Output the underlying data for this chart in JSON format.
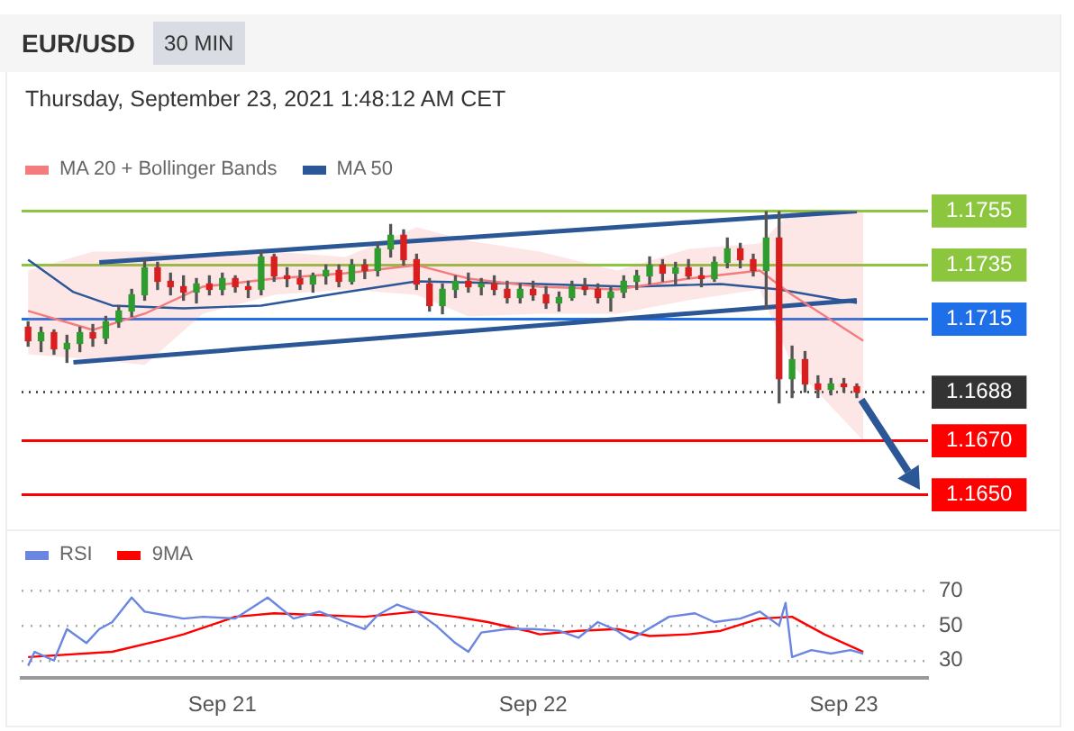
{
  "chart_data": [
    {
      "type": "candlestick",
      "title": "EUR/USD",
      "subtitle": "30 MIN",
      "annotations": [
        "Thursday, September 23, 2021 1:48:12 AM CET"
      ],
      "x": [
        "2021-09-20T09:00",
        "2021-09-20T10:00",
        "2021-09-20T11:00",
        "2021-09-20T12:00",
        "2021-09-20T13:00",
        "2021-09-20T14:00",
        "2021-09-20T15:00",
        "2021-09-20T16:00",
        "2021-09-20T17:00",
        "2021-09-20T18:00",
        "2021-09-20T19:00",
        "2021-09-20T20:00",
        "2021-09-20T21:00",
        "2021-09-20T22:00",
        "2021-09-20T23:00",
        "2021-09-21T00:00",
        "2021-09-21T01:00",
        "2021-09-21T02:00",
        "2021-09-21T03:00",
        "2021-09-21T04:00",
        "2021-09-21T05:00",
        "2021-09-21T06:00",
        "2021-09-21T07:00",
        "2021-09-21T08:00",
        "2021-09-21T09:00",
        "2021-09-21T10:00",
        "2021-09-21T11:00",
        "2021-09-21T12:00",
        "2021-09-21T13:00",
        "2021-09-21T14:00",
        "2021-09-21T15:00",
        "2021-09-21T16:00",
        "2021-09-21T17:00",
        "2021-09-21T18:00",
        "2021-09-21T19:00",
        "2021-09-21T20:00",
        "2021-09-21T21:00",
        "2021-09-21T22:00",
        "2021-09-21T23:00",
        "2021-09-22T00:00",
        "2021-09-22T01:00",
        "2021-09-22T02:00",
        "2021-09-22T03:00",
        "2021-09-22T04:00",
        "2021-09-22T05:00",
        "2021-09-22T06:00",
        "2021-09-22T07:00",
        "2021-09-22T08:00",
        "2021-09-22T09:00",
        "2021-09-22T10:00",
        "2021-09-22T11:00",
        "2021-09-22T12:00",
        "2021-09-22T13:00",
        "2021-09-22T14:00",
        "2021-09-22T15:00",
        "2021-09-22T16:00",
        "2021-09-22T17:00",
        "2021-09-22T18:00",
        "2021-09-22T19:00",
        "2021-09-22T20:00",
        "2021-09-22T21:00",
        "2021-09-22T22:00",
        "2021-09-22T23:00",
        "2021-09-23T00:00",
        "2021-09-23T01:00"
      ],
      "ohlc": [
        [
          1.1712,
          1.1714,
          1.1705,
          1.1707
        ],
        [
          1.1707,
          1.1712,
          1.1703,
          1.171
        ],
        [
          1.171,
          1.1711,
          1.1702,
          1.1704
        ],
        [
          1.1704,
          1.1709,
          1.1699,
          1.1706
        ],
        [
          1.1706,
          1.1712,
          1.1703,
          1.171
        ],
        [
          1.171,
          1.1713,
          1.1705,
          1.1708
        ],
        [
          1.1708,
          1.1716,
          1.1706,
          1.1714
        ],
        [
          1.1714,
          1.172,
          1.1712,
          1.1718
        ],
        [
          1.1718,
          1.1726,
          1.1716,
          1.1724
        ],
        [
          1.1724,
          1.1737,
          1.1722,
          1.1734
        ],
        [
          1.1734,
          1.1736,
          1.1726,
          1.1729
        ],
        [
          1.1729,
          1.1732,
          1.1724,
          1.1727
        ],
        [
          1.1727,
          1.1731,
          1.1722,
          1.1725
        ],
        [
          1.1725,
          1.173,
          1.1721,
          1.1728
        ],
        [
          1.1728,
          1.1731,
          1.1724,
          1.1726
        ],
        [
          1.1726,
          1.1732,
          1.1724,
          1.173
        ],
        [
          1.173,
          1.1731,
          1.1725,
          1.1727
        ],
        [
          1.1727,
          1.1729,
          1.1723,
          1.1726
        ],
        [
          1.1726,
          1.174,
          1.1724,
          1.1738
        ],
        [
          1.1738,
          1.1739,
          1.1729,
          1.1731
        ],
        [
          1.1731,
          1.1734,
          1.1727,
          1.173
        ],
        [
          1.173,
          1.1733,
          1.1726,
          1.1728
        ],
        [
          1.1728,
          1.1732,
          1.1725,
          1.1731
        ],
        [
          1.1731,
          1.1735,
          1.1728,
          1.1733
        ],
        [
          1.1733,
          1.1735,
          1.1727,
          1.1729
        ],
        [
          1.1729,
          1.1737,
          1.1728,
          1.1735
        ],
        [
          1.1735,
          1.1737,
          1.173,
          1.1733
        ],
        [
          1.1733,
          1.1743,
          1.1731,
          1.1741
        ],
        [
          1.1741,
          1.175,
          1.1738,
          1.1746
        ],
        [
          1.1746,
          1.1748,
          1.1735,
          1.1737
        ],
        [
          1.1737,
          1.1739,
          1.1726,
          1.1728
        ],
        [
          1.1728,
          1.173,
          1.1718,
          1.172
        ],
        [
          1.172,
          1.1728,
          1.1717,
          1.1726
        ],
        [
          1.1726,
          1.1731,
          1.1723,
          1.1729
        ],
        [
          1.1729,
          1.1732,
          1.1725,
          1.1727
        ],
        [
          1.1727,
          1.173,
          1.1724,
          1.1728
        ],
        [
          1.1728,
          1.1731,
          1.1724,
          1.1726
        ],
        [
          1.1726,
          1.1729,
          1.1721,
          1.1723
        ],
        [
          1.1723,
          1.1728,
          1.1721,
          1.1726
        ],
        [
          1.1726,
          1.1729,
          1.1722,
          1.1724
        ],
        [
          1.1724,
          1.1727,
          1.1719,
          1.1721
        ],
        [
          1.1721,
          1.1725,
          1.1718,
          1.1723
        ],
        [
          1.1723,
          1.1729,
          1.1722,
          1.1727
        ],
        [
          1.1727,
          1.173,
          1.1724,
          1.1726
        ],
        [
          1.1726,
          1.1728,
          1.1721,
          1.1723
        ],
        [
          1.1723,
          1.1727,
          1.1718,
          1.1725
        ],
        [
          1.1725,
          1.1731,
          1.1723,
          1.1729
        ],
        [
          1.1729,
          1.1733,
          1.1726,
          1.1731
        ],
        [
          1.1731,
          1.1738,
          1.1728,
          1.1735
        ],
        [
          1.1735,
          1.1737,
          1.1729,
          1.1732
        ],
        [
          1.1732,
          1.1736,
          1.1728,
          1.1734
        ],
        [
          1.1734,
          1.1737,
          1.173,
          1.1731
        ],
        [
          1.1731,
          1.1734,
          1.1727,
          1.173
        ],
        [
          1.173,
          1.1738,
          1.1729,
          1.1736
        ],
        [
          1.1736,
          1.1745,
          1.1734,
          1.1741
        ],
        [
          1.1741,
          1.1743,
          1.1734,
          1.1737
        ],
        [
          1.1737,
          1.1739,
          1.1731,
          1.1733
        ],
        [
          1.1733,
          1.1755,
          1.1719,
          1.1745
        ],
        [
          1.1745,
          1.1755,
          1.1684,
          1.1693
        ],
        [
          1.1693,
          1.1705,
          1.1686,
          1.17
        ],
        [
          1.17,
          1.1703,
          1.1688,
          1.1691
        ],
        [
          1.1691,
          1.1694,
          1.1686,
          1.1689
        ],
        [
          1.1689,
          1.1693,
          1.1687,
          1.1691
        ],
        [
          1.1691,
          1.1693,
          1.1688,
          1.169
        ],
        [
          1.169,
          1.1691,
          1.1686,
          1.1688
        ]
      ],
      "series": [
        {
          "type": "line",
          "name": "MA 20 + Bollinger Bands",
          "color": "#f47c7c",
          "x": [
            "2021-09-20T09:00",
            "2021-09-20T14:00",
            "2021-09-20T18:00",
            "2021-09-20T22:30",
            "2021-09-21T04:00",
            "2021-09-21T09:30",
            "2021-09-21T15:00",
            "2021-09-21T19:00",
            "2021-09-22T00:30",
            "2021-09-22T06:30",
            "2021-09-22T12:00",
            "2021-09-22T17:30",
            "2021-09-22T20:00",
            "2021-09-23T01:30"
          ],
          "values": [
            1.1718,
            1.1711,
            1.1717,
            1.1727,
            1.173,
            1.1732,
            1.1735,
            1.173,
            1.1727,
            1.1726,
            1.173,
            1.1733,
            1.1724,
            1.1707
          ],
          "upper": [
            1.1733,
            1.174,
            1.174,
            1.1738,
            1.174,
            1.1738,
            1.1749,
            1.1744,
            1.174,
            1.1733,
            1.1741,
            1.1743,
            1.1755,
            1.1755
          ],
          "lower": [
            1.1702,
            1.17,
            1.1698,
            1.1717,
            1.1724,
            1.1726,
            1.1724,
            1.1716,
            1.1717,
            1.1717,
            1.1722,
            1.1726,
            1.1698,
            1.167
          ]
        },
        {
          "type": "line",
          "name": "MA 50",
          "color": "#2b5797",
          "x": [
            "2021-09-20T09:00",
            "2021-09-20T12:30",
            "2021-09-20T15:30",
            "2021-09-20T21:00",
            "2021-09-21T03:00",
            "2021-09-21T09:30",
            "2021-09-21T15:00",
            "2021-09-22T00:30",
            "2021-09-22T07:30",
            "2021-09-22T14:30",
            "2021-09-22T19:00",
            "2021-09-23T01:00"
          ],
          "values": [
            1.1737,
            1.1725,
            1.172,
            1.1719,
            1.172,
            1.1725,
            1.1729,
            1.1728,
            1.1727,
            1.1728,
            1.1726,
            1.1721
          ]
        },
        {
          "type": "line",
          "color": "#2b5797",
          "x": [
            "2021-09-20T14:30",
            "2021-09-23T01:00"
          ],
          "values": [
            1.1736,
            1.1755
          ]
        },
        {
          "type": "line",
          "color": "#2b5797",
          "x": [
            "2021-09-20T12:30",
            "2021-09-23T01:00"
          ],
          "values": [
            1.1699,
            1.1722
          ]
        }
      ],
      "xlim": [
        "2021-09-20T08:30",
        "2021-09-23T06:30"
      ],
      "ylim": [
        1.165,
        1.1755
      ],
      "yticks": [
        1.1755,
        1.1735,
        1.1715,
        1.1688,
        {
          "value": 1.167,
          "label": "1.1670"
        },
        {
          "value": 1.165,
          "label": "1.1650"
        }
      ],
      "ref_lines": [
        {
          "axis": "y",
          "value": 1.1755,
          "color": "#8cc63f",
          "line_style": "solid"
        },
        {
          "axis": "y",
          "value": 1.1735,
          "color": "#8cc63f",
          "line_style": "solid"
        },
        {
          "axis": "y",
          "value": 1.1715,
          "color": "#1f6fe8",
          "line_style": "solid"
        },
        {
          "axis": "y",
          "value": 1.1688,
          "color": "#333333",
          "line_style": "dotted"
        },
        {
          "axis": "y",
          "value": 1.167,
          "color": "#ff0000",
          "line_style": "solid"
        },
        {
          "axis": "y",
          "value": 1.165,
          "color": "#ff0000",
          "line_style": "solid"
        }
      ],
      "legend": "top left",
      "tick_labels": "y"
    },
    {
      "type": "line",
      "series": [
        {
          "name": "RSI",
          "color": "#6a86e0",
          "x": [
            "2021-09-20T09:00",
            "2021-09-20T09:30",
            "2021-09-20T11:00",
            "2021-09-20T12:00",
            "2021-09-20T13:30",
            "2021-09-20T14:30",
            "2021-09-20T15:30",
            "2021-09-20T17:00",
            "2021-09-20T18:00",
            "2021-09-20T19:30",
            "2021-09-20T21:00",
            "2021-09-20T22:30",
            "2021-09-21T01:00",
            "2021-09-21T03:30",
            "2021-09-21T05:30",
            "2021-09-21T07:30",
            "2021-09-21T09:30",
            "2021-09-21T11:00",
            "2021-09-21T12:00",
            "2021-09-21T13:30",
            "2021-09-21T15:00",
            "2021-09-21T16:30",
            "2021-09-21T18:00",
            "2021-09-21T19:00",
            "2021-09-21T20:00",
            "2021-09-21T22:00",
            "2021-09-22T00:00",
            "2021-09-22T02:00",
            "2021-09-22T03:30",
            "2021-09-22T05:00",
            "2021-09-22T06:30",
            "2021-09-22T07:30",
            "2021-09-22T10:30",
            "2021-09-22T12:30",
            "2021-09-22T14:00",
            "2021-09-22T16:00",
            "2021-09-22T17:30",
            "2021-09-22T19:00",
            "2021-09-22T19:30",
            "2021-09-22T20:00",
            "2021-09-22T21:30",
            "2021-09-22T23:00",
            "2021-09-23T00:30",
            "2021-09-23T01:30"
          ],
          "values": [
            27,
            35,
            30,
            48,
            40,
            48,
            52,
            66,
            58,
            56,
            54,
            55,
            54,
            66,
            54,
            58,
            52,
            48,
            56,
            62,
            58,
            50,
            40,
            35,
            46,
            48,
            48,
            47,
            43,
            52,
            47,
            42,
            55,
            57,
            52,
            54,
            58,
            50,
            63,
            32,
            36,
            34,
            36,
            34
          ]
        },
        {
          "name": "9MA",
          "color": "#ff0000",
          "x": [
            "2021-09-20T09:00",
            "2021-09-20T15:30",
            "2021-09-20T19:30",
            "2021-09-20T21:00",
            "2021-09-21T01:00",
            "2021-09-21T04:00",
            "2021-09-21T11:00",
            "2021-09-21T15:00",
            "2021-09-21T18:00",
            "2021-09-21T20:30",
            "2021-09-21T23:30",
            "2021-09-22T00:30",
            "2021-09-22T03:30",
            "2021-09-22T06:30",
            "2021-09-22T09:00",
            "2021-09-22T12:00",
            "2021-09-22T14:30",
            "2021-09-22T17:30",
            "2021-09-22T20:00",
            "2021-09-22T22:30",
            "2021-09-23T01:30"
          ],
          "values": [
            32,
            35,
            42,
            45,
            55,
            57,
            55,
            58,
            55,
            52,
            47,
            45,
            47,
            48,
            44,
            45,
            47,
            54,
            55,
            45,
            35
          ]
        }
      ],
      "xlim": [
        "2021-09-20T08:30",
        "2021-09-23T06:30"
      ],
      "xticks": [
        {
          "value": "2021-09-21",
          "label": "Sep 21"
        },
        {
          "value": "2021-09-22",
          "label": "Sep 22"
        },
        {
          "value": "2021-09-23",
          "label": "Sep 23"
        }
      ],
      "ylim": [
        20,
        70
      ],
      "yticks": [
        30,
        50,
        70
      ],
      "grid": "y",
      "legend": "top left"
    }
  ]
}
